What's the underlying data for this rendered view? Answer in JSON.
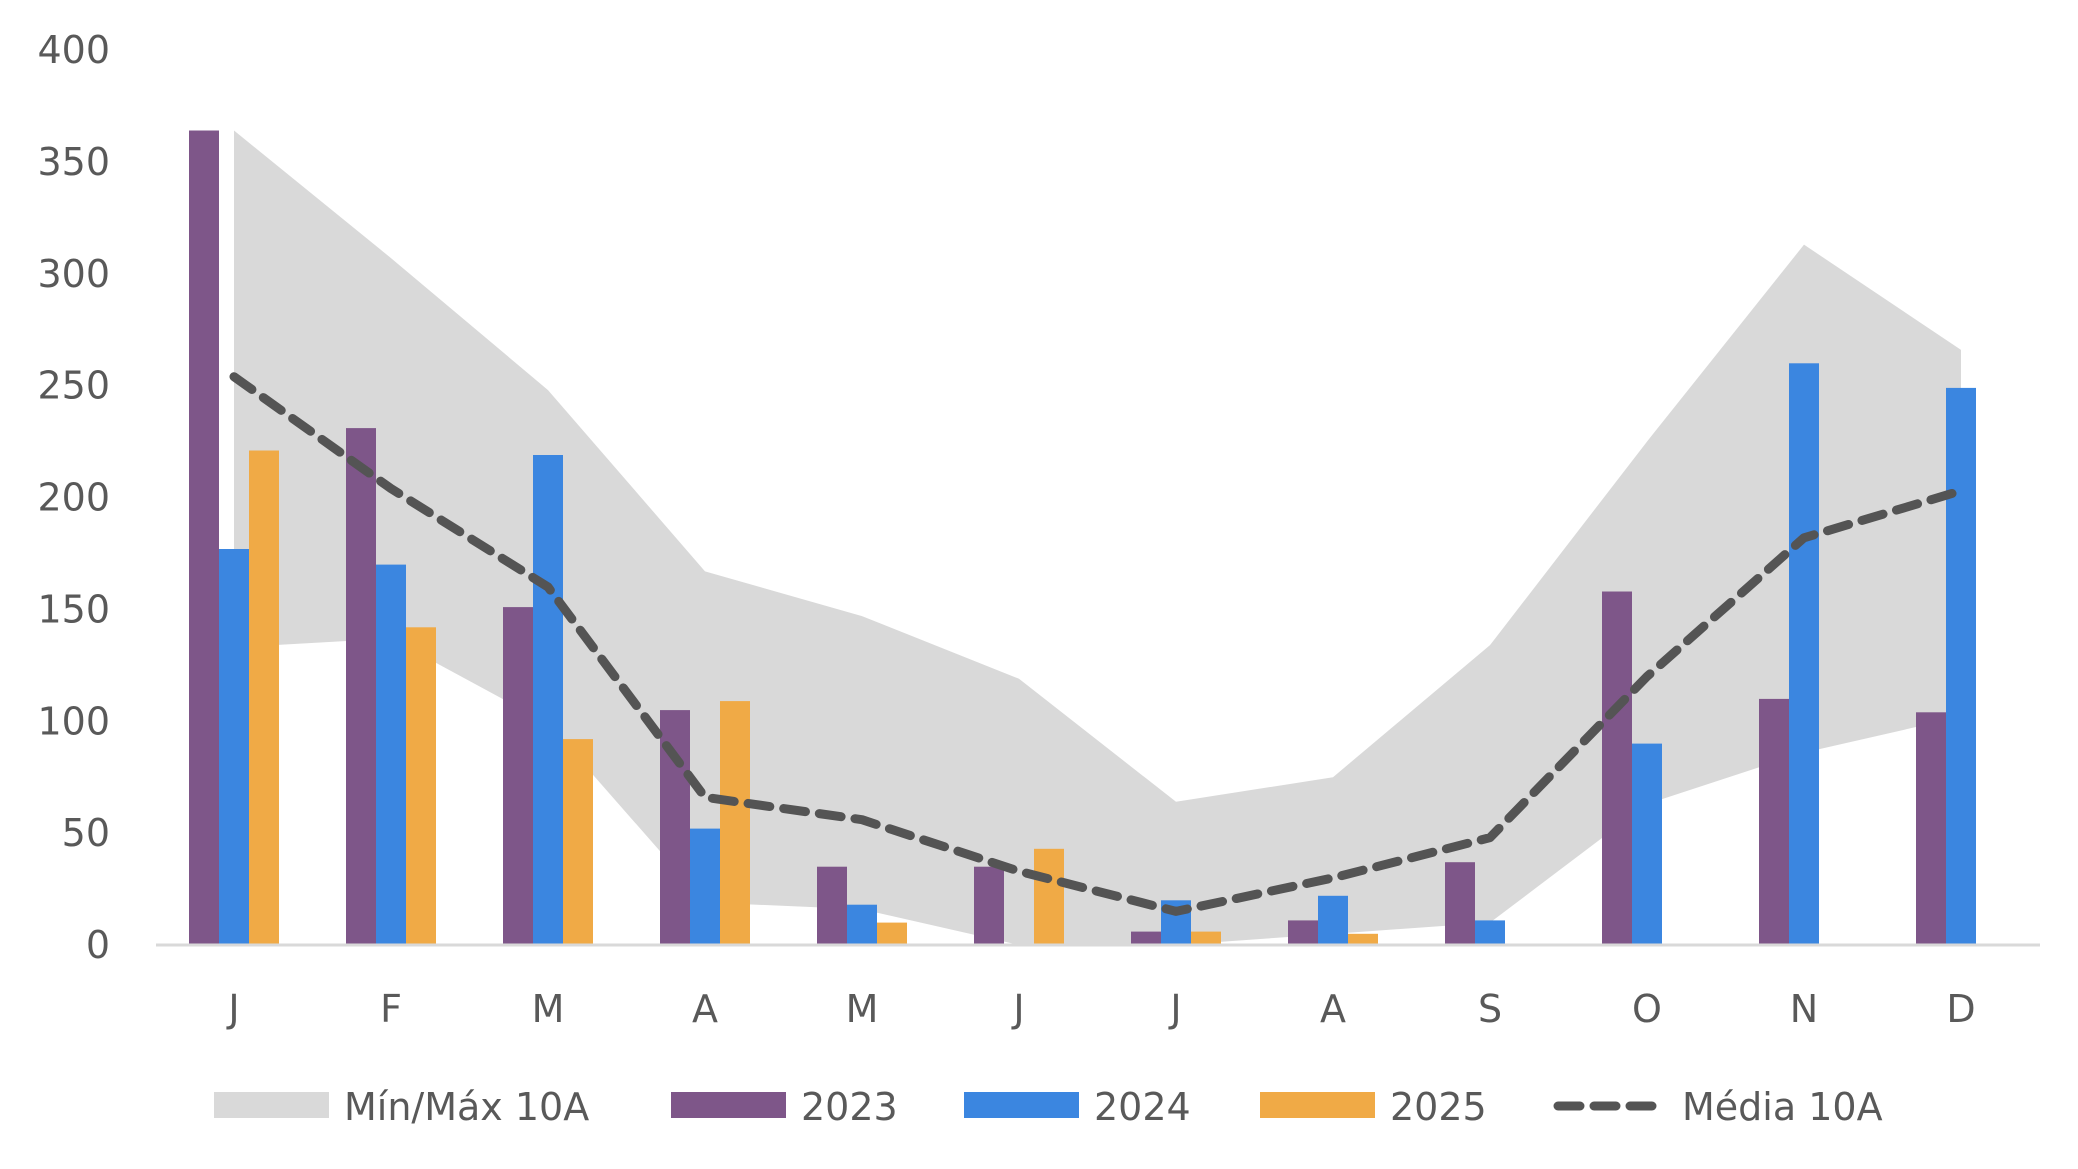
{
  "chart_data": {
    "type": "bar",
    "categories": [
      "J",
      "F",
      "M",
      "A",
      "M",
      "J",
      "J",
      "A",
      "S",
      "O",
      "N",
      "D"
    ],
    "ylim": [
      0,
      400
    ],
    "yticks": [
      0,
      50,
      100,
      150,
      200,
      250,
      300,
      350,
      400
    ],
    "grid": false,
    "legend_position": "bottom",
    "band": {
      "name": "Mín/Máx 10A",
      "color": "#D9D9D9",
      "min": [
        133,
        137,
        99,
        19,
        16,
        0,
        0,
        5,
        10,
        63,
        86,
        102
      ],
      "max": [
        364,
        307,
        248,
        167,
        147,
        119,
        64,
        75,
        134,
        225,
        313,
        266
      ]
    },
    "series": [
      {
        "name": "2023",
        "color": "#7E5689",
        "values": [
          364,
          231,
          151,
          105,
          35,
          35,
          6,
          11,
          37,
          158,
          110,
          104
        ]
      },
      {
        "name": "2024",
        "color": "#3B86E0",
        "values": [
          177,
          170,
          219,
          52,
          18,
          0,
          20,
          22,
          11,
          90,
          260,
          249
        ]
      },
      {
        "name": "2025",
        "color": "#F0AA46",
        "values": [
          221,
          142,
          92,
          109,
          10,
          43,
          6,
          5,
          null,
          null,
          null,
          null
        ]
      }
    ],
    "line": {
      "name": "Média 10A",
      "color": "#545454",
      "values": [
        254,
        204,
        160,
        66,
        56,
        33,
        15,
        30,
        48,
        120,
        182,
        203
      ]
    }
  }
}
